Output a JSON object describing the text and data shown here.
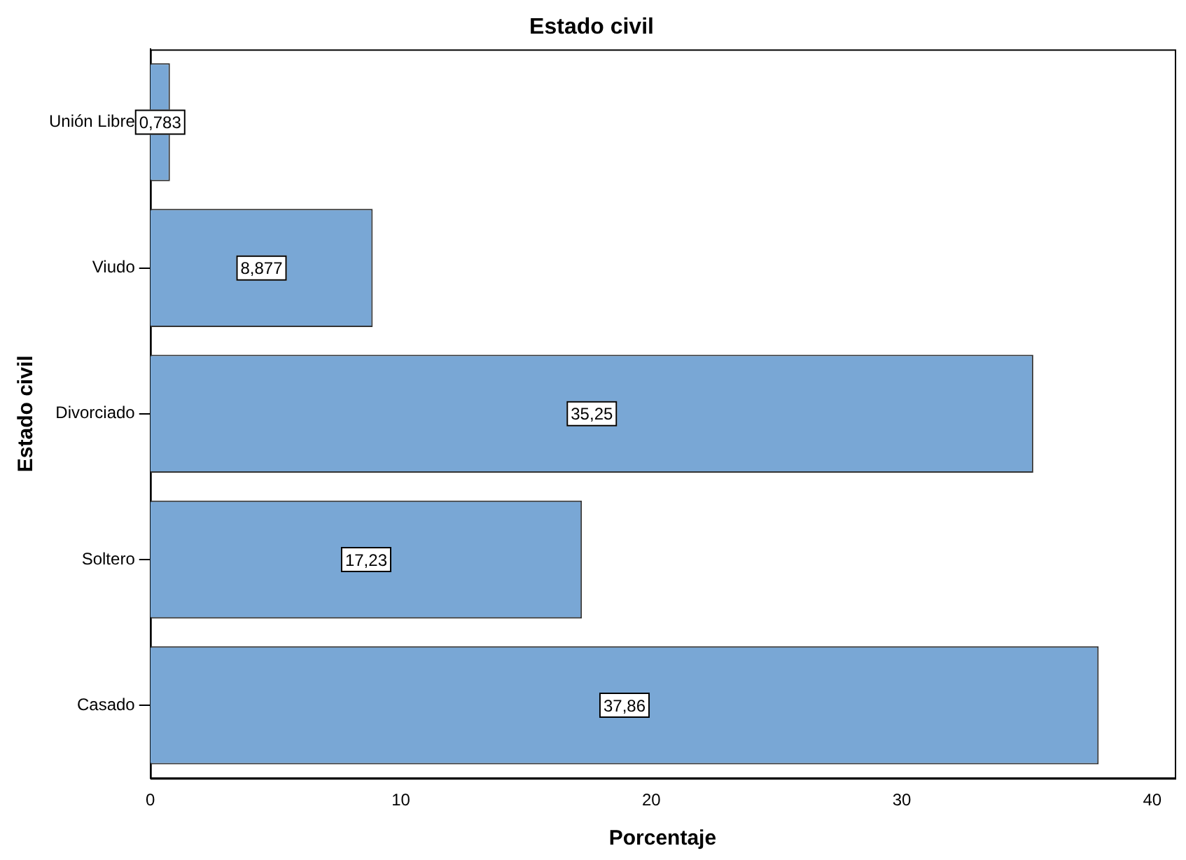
{
  "chart_data": {
    "type": "bar",
    "orientation": "horizontal",
    "title": "Estado civil",
    "xlabel": "Porcentaje",
    "ylabel": "Estado civil",
    "categories": [
      "Unión Libre",
      "Viudo",
      "Divorciado",
      "Soltero",
      "Casado"
    ],
    "values": [
      0.783,
      8.877,
      35.25,
      17.23,
      37.86
    ],
    "value_labels": [
      "0,783",
      "8,877",
      "35,25",
      "17,23",
      "37,86"
    ],
    "color": "#79a7d5",
    "xlim": [
      0,
      40.9
    ],
    "xticks": [
      0,
      10,
      20,
      30,
      40
    ],
    "grid": false,
    "legend": false
  }
}
